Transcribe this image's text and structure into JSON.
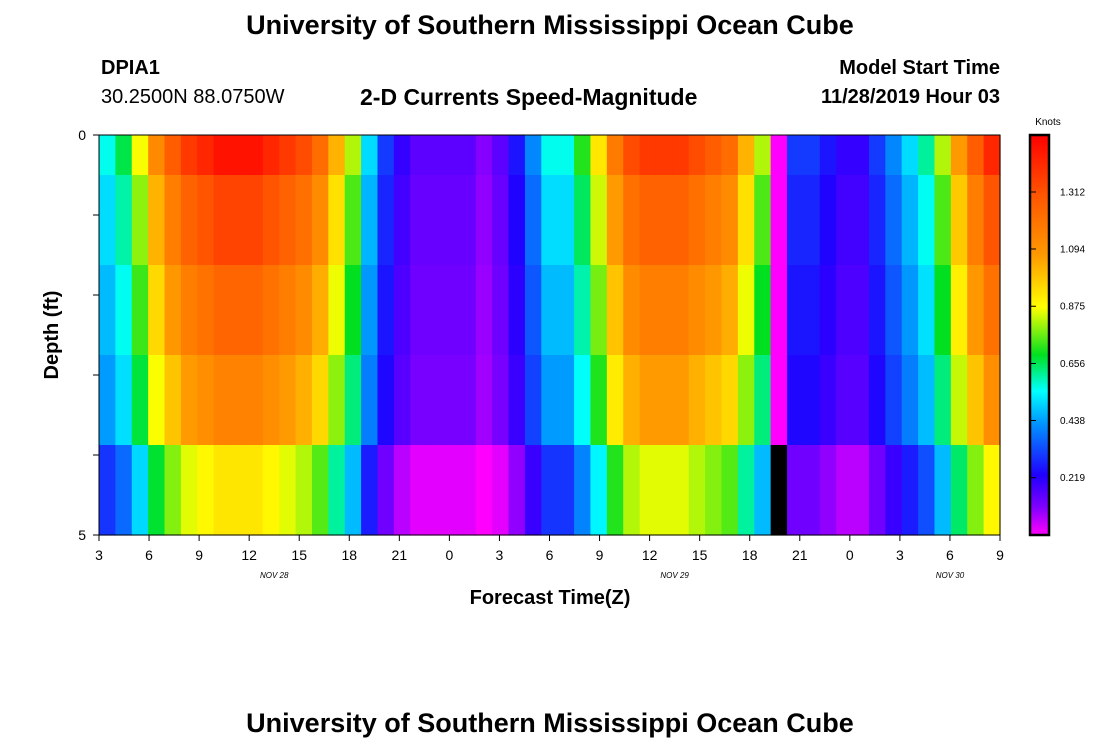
{
  "header": {
    "title": "University of Southern Mississippi Ocean Cube",
    "station_id": "DPIA1",
    "coords": "30.2500N 88.0750W",
    "subtitle": "2-D Currents Speed-Magnitude",
    "model_label": "Model Start Time",
    "model_time": "11/28/2019 Hour 03"
  },
  "footer": {
    "title": "University of Southern Mississippi Ocean Cube"
  },
  "chart_data": {
    "type": "heatmap",
    "title": "2-D Currents Speed-Magnitude",
    "xlabel": "Forecast Time(Z)",
    "ylabel": "Depth (ft)",
    "x_tick_labels": [
      "3",
      "6",
      "9",
      "12",
      "15",
      "18",
      "21",
      "0",
      "3",
      "6",
      "9",
      "12",
      "15",
      "18",
      "21",
      "0",
      "3",
      "6",
      "9"
    ],
    "date_labels": [
      {
        "label": "NOV  28",
        "hour_index": 10.5
      },
      {
        "label": "NOV  29",
        "hour_index": 34.5
      },
      {
        "label": "NOV  30",
        "hour_index": 51
      }
    ],
    "y_tick_labels": [
      "0",
      "5"
    ],
    "ylim": [
      0,
      5
    ],
    "hours_range": [
      0,
      54
    ],
    "colorbar": {
      "label": "Knots",
      "ticks": [
        0.219,
        0.438,
        0.656,
        0.875,
        1.094,
        1.312
      ],
      "tick_labels": [
        "0.219",
        "0.438",
        "0.656",
        "0.875",
        "1.094",
        "1.312"
      ],
      "range": [
        0,
        1.53
      ]
    },
    "depth_layers": 5,
    "surface_speed_knots": [
      0.55,
      0.65,
      0.85,
      1.1,
      1.25,
      1.35,
      1.4,
      1.45,
      1.45,
      1.45,
      1.4,
      1.35,
      1.3,
      1.2,
      1.0,
      0.8,
      0.5,
      0.3,
      0.2,
      0.15,
      0.15,
      0.15,
      0.15,
      0.1,
      0.15,
      0.25,
      0.4,
      0.55,
      0.55,
      0.7,
      0.9,
      1.15,
      1.3,
      1.35,
      1.35,
      1.35,
      1.3,
      1.25,
      1.2,
      1.0,
      0.8,
      0.0,
      0.3,
      0.3,
      0.25,
      0.2,
      0.2,
      0.3,
      0.4,
      0.5,
      0.6,
      0.8,
      1.05,
      1.25,
      1.4
    ],
    "depth_factors": [
      1.0,
      0.93,
      0.86,
      0.79,
      0.69
    ],
    "bottom_offset": 0.08
  }
}
